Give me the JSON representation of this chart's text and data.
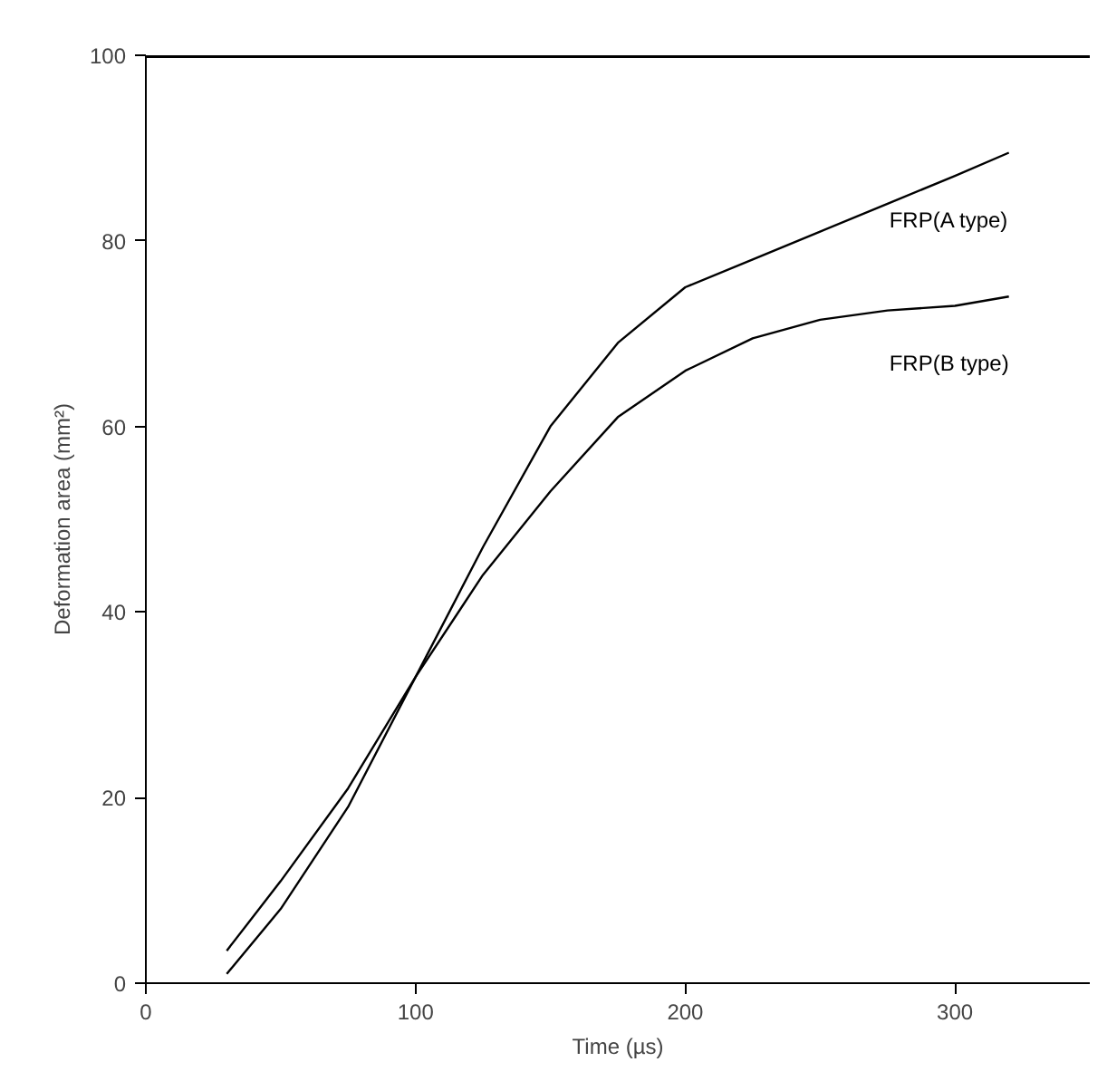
{
  "chart_data": {
    "type": "line",
    "xlabel": "Time (µs)",
    "ylabel": "Deformation area (mm²)",
    "xlim": [
      0,
      350
    ],
    "ylim": [
      0,
      100
    ],
    "xticks": [
      0,
      100,
      200,
      300
    ],
    "yticks": [
      0,
      20,
      40,
      60,
      80,
      100
    ],
    "grid": false,
    "marker": "none",
    "line_style": "solid",
    "series": [
      {
        "name": "FRP(A type)",
        "color": "#000000",
        "x": [
          30,
          50,
          75,
          100,
          125,
          150,
          175,
          200,
          225,
          250,
          275,
          300,
          320
        ],
        "values": [
          1,
          8,
          19,
          33,
          47,
          60,
          69,
          75,
          78,
          81,
          84,
          87,
          89.5
        ]
      },
      {
        "name": "FRP(B type)",
        "color": "#000000",
        "x": [
          30,
          50,
          75,
          100,
          125,
          150,
          175,
          200,
          225,
          250,
          275,
          300,
          320
        ],
        "values": [
          3.5,
          11,
          21,
          33,
          44,
          53,
          61,
          66,
          69.5,
          71.5,
          72.5,
          73,
          74
        ]
      }
    ]
  }
}
